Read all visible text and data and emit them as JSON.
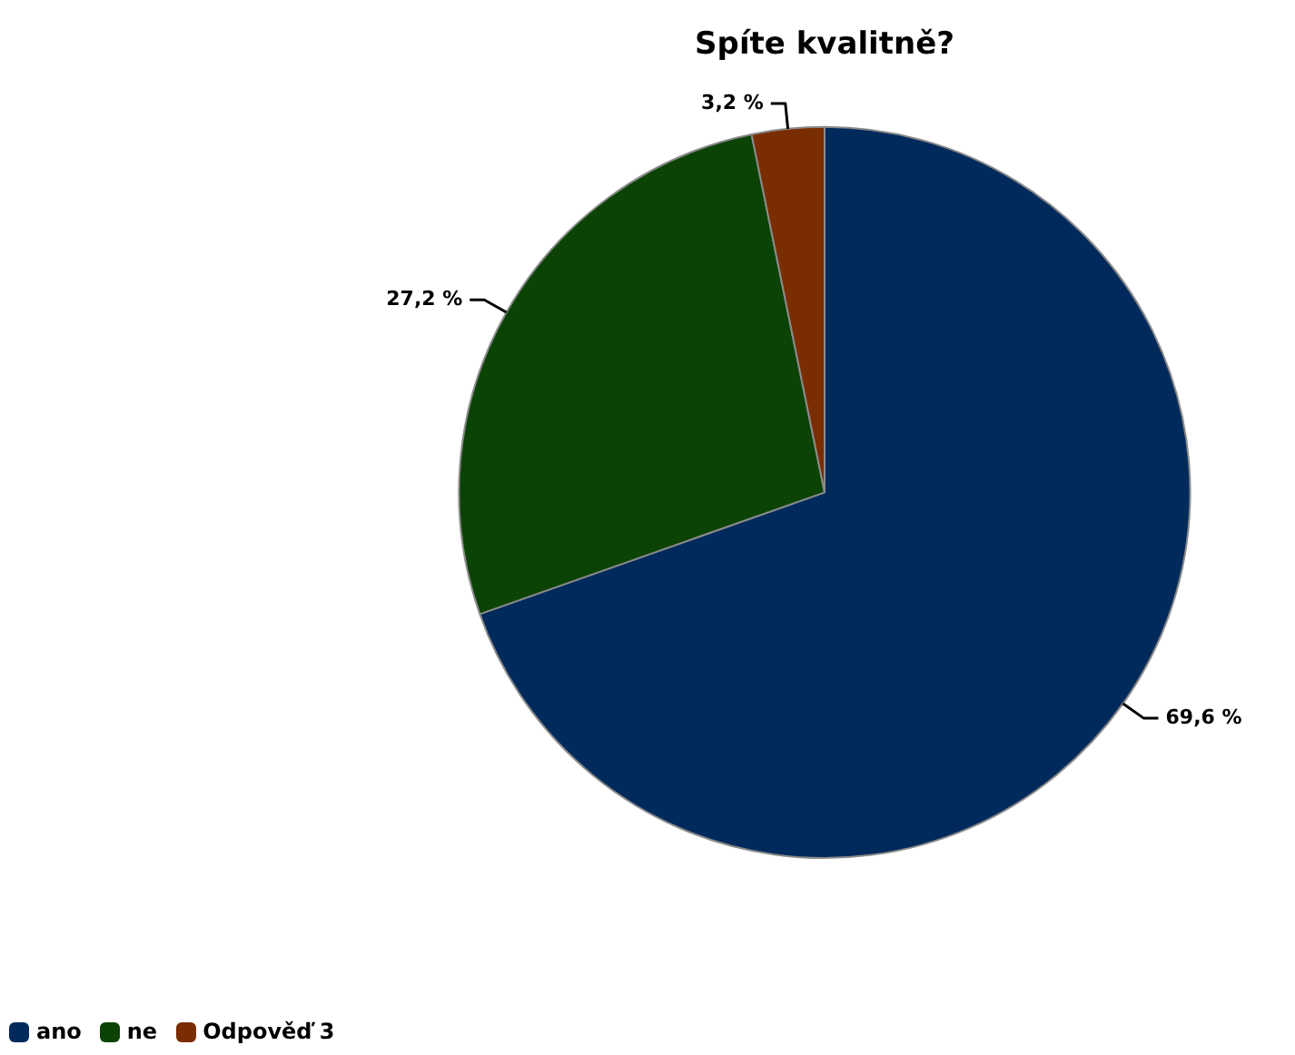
{
  "chart_data": {
    "type": "pie",
    "title": "Spíte kvalitně?",
    "categories": [
      "ano",
      "ne",
      "Odpověď 3"
    ],
    "values": [
      69.6,
      27.2,
      3.2
    ],
    "value_labels": [
      "69,6 %",
      "27,2 %",
      "3,2 %"
    ],
    "colors": [
      "#002a5c",
      "#0b4305",
      "#7a2d00"
    ],
    "legend": "bottom left"
  }
}
